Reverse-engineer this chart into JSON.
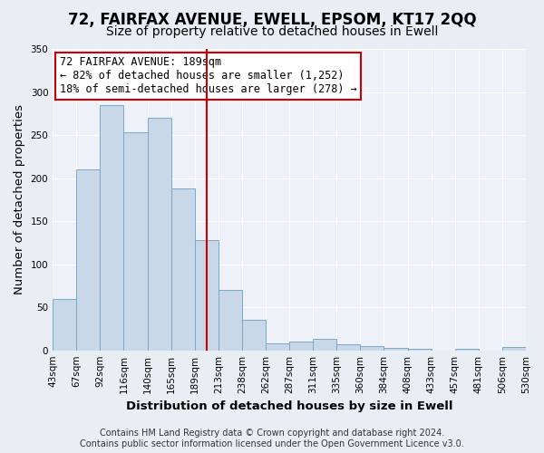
{
  "title": "72, FAIRFAX AVENUE, EWELL, EPSOM, KT17 2QQ",
  "subtitle": "Size of property relative to detached houses in Ewell",
  "xlabel": "Distribution of detached houses by size in Ewell",
  "ylabel": "Number of detached properties",
  "bin_labels": [
    "43sqm",
    "67sqm",
    "92sqm",
    "116sqm",
    "140sqm",
    "165sqm",
    "189sqm",
    "213sqm",
    "238sqm",
    "262sqm",
    "287sqm",
    "311sqm",
    "335sqm",
    "360sqm",
    "384sqm",
    "408sqm",
    "433sqm",
    "457sqm",
    "481sqm",
    "506sqm",
    "530sqm"
  ],
  "values": [
    60,
    210,
    285,
    253,
    270,
    188,
    128,
    70,
    35,
    8,
    10,
    13,
    7,
    5,
    3,
    2,
    0,
    2,
    0,
    4
  ],
  "highlight_index": 6,
  "bar_color": "#c8d8e8",
  "bar_edge_color": "#7aaac8",
  "highlight_line_color": "#cc0000",
  "annotation_box_color": "#ffffff",
  "annotation_box_edge": "#cc0000",
  "annotation_text_lines": [
    "72 FAIRFAX AVENUE: 189sqm",
    "← 82% of detached houses are smaller (1,252)",
    "18% of semi-detached houses are larger (278) →"
  ],
  "ylim": [
    0,
    350
  ],
  "yticks": [
    0,
    50,
    100,
    150,
    200,
    250,
    300,
    350
  ],
  "footer_line1": "Contains HM Land Registry data © Crown copyright and database right 2024.",
  "footer_line2": "Contains public sector information licensed under the Open Government Licence v3.0.",
  "background_color": "#e8eef4",
  "plot_bg_color": "#eef2f8",
  "title_fontsize": 12,
  "subtitle_fontsize": 10,
  "axis_label_fontsize": 9.5,
  "tick_fontsize": 7.5,
  "annotation_fontsize": 8.5,
  "footer_fontsize": 7
}
